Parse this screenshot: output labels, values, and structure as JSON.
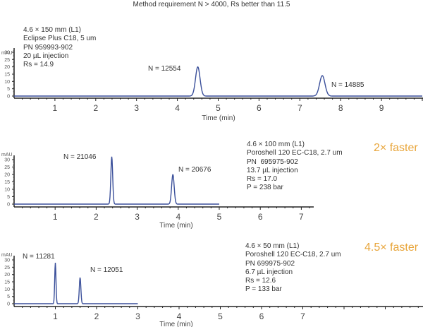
{
  "title": "Method requirement  N > 4000, Rs better than 11.5",
  "chart_data": [
    {
      "type": "line",
      "title": "4.6 × 150 mm (L1) Eclipse Plus C18, 5 um",
      "xlabel": "Time (min)",
      "ylabel": "mAU",
      "xlim": [
        0,
        10
      ],
      "ylim": [
        0,
        30
      ],
      "xticks": [
        1,
        2,
        3,
        4,
        5,
        6,
        7,
        8,
        9
      ],
      "yticks": [
        0,
        5,
        10,
        15,
        20,
        25,
        30
      ],
      "peaks": [
        {
          "time": 4.5,
          "height": 20,
          "label": "N = 12554"
        },
        {
          "time": 7.55,
          "height": 14,
          "label": "N = 14885"
        }
      ],
      "info": [
        "4.6 × 150 mm (L1)",
        "Eclipse Plus C18, 5 um",
        "PN 959993-902",
        "20 µL injection",
        "Rs = 14.9"
      ]
    },
    {
      "type": "line",
      "title": "4.6 × 100 mm (L1) Poroshell 120 EC-C18, 2.7 um",
      "xlabel": "Time (min)",
      "ylabel": "mAU",
      "xlim": [
        0,
        7.3
      ],
      "ylim": [
        0,
        30
      ],
      "xticks": [
        1,
        2,
        3,
        4,
        5,
        6,
        7
      ],
      "yticks": [
        0,
        5,
        10,
        15,
        20,
        25,
        30
      ],
      "trace_end": 5,
      "peaks": [
        {
          "time": 2.38,
          "height": 32,
          "label": "N = 21046"
        },
        {
          "time": 3.87,
          "height": 20,
          "label": "N = 20676"
        }
      ],
      "info": [
        "4.6 × 100 mm (L1)",
        "Poroshell 120 EC-C18, 2.7 um",
        "PN  695975-902",
        "13.7 µL injection",
        "Rs = 17.0",
        "P = 238 bar"
      ],
      "speedup": "2× faster"
    },
    {
      "type": "line",
      "title": "4.6 × 50 mm (L1) Poroshell 120 EC-C18, 2.7 um",
      "xlabel": "Time (min)",
      "ylabel": "mAU",
      "xlim": [
        0,
        7.4
      ],
      "ylim": [
        0,
        30
      ],
      "xticks": [
        1,
        2,
        3,
        4,
        5,
        6,
        7
      ],
      "yticks": [
        0,
        5,
        10,
        15,
        20,
        25,
        30
      ],
      "trace_end": 3,
      "peaks": [
        {
          "time": 1.0,
          "height": 28,
          "label": "N = 11281"
        },
        {
          "time": 1.6,
          "height": 18,
          "label": "N = 12051"
        }
      ],
      "info": [
        "4.6 × 50 mm (L1)",
        "Poroshell 120 EC-C18, 2.7 um",
        "PN 699975-902",
        "6.7 µL injection",
        "Rs = 12.6",
        "P = 133 bar"
      ],
      "speedup": "4.5× faster"
    }
  ],
  "panels": {
    "p1": {
      "info": "4.6 × 150 mm (L1)\nEclipse Plus C18, 5 um\nPN 959993-902\n20 µL injection\nRs = 14.9",
      "ylabel": "mAU",
      "xlabel": "Time (min)",
      "peak1": "N = 12554",
      "peak2": "N = 14885"
    },
    "p2": {
      "info": "4.6 × 100 mm (L1)\nPoroshell 120 EC-C18, 2.7 um\nPN  695975-902\n13.7 µL injection\nRs = 17.0\nP = 238 bar",
      "ylabel": "mAU",
      "xlabel": "Time (min)",
      "peak1": "N = 21046",
      "peak2": "N = 20676",
      "speedup": "2× faster"
    },
    "p3": {
      "info": "4.6 × 50 mm (L1)\nPoroshell 120 EC-C18, 2.7 um\nPN 699975-902\n6.7 µL injection\nRs = 12.6\nP = 133 bar",
      "ylabel": "mAU",
      "xlabel": "Time (min)",
      "peak1": "N = 11281",
      "peak2": "N = 12051",
      "speedup": "4.5× faster"
    }
  },
  "colors": {
    "trace": "#3a4f9a",
    "accent": "#e8a53a",
    "axis": "#222222"
  }
}
